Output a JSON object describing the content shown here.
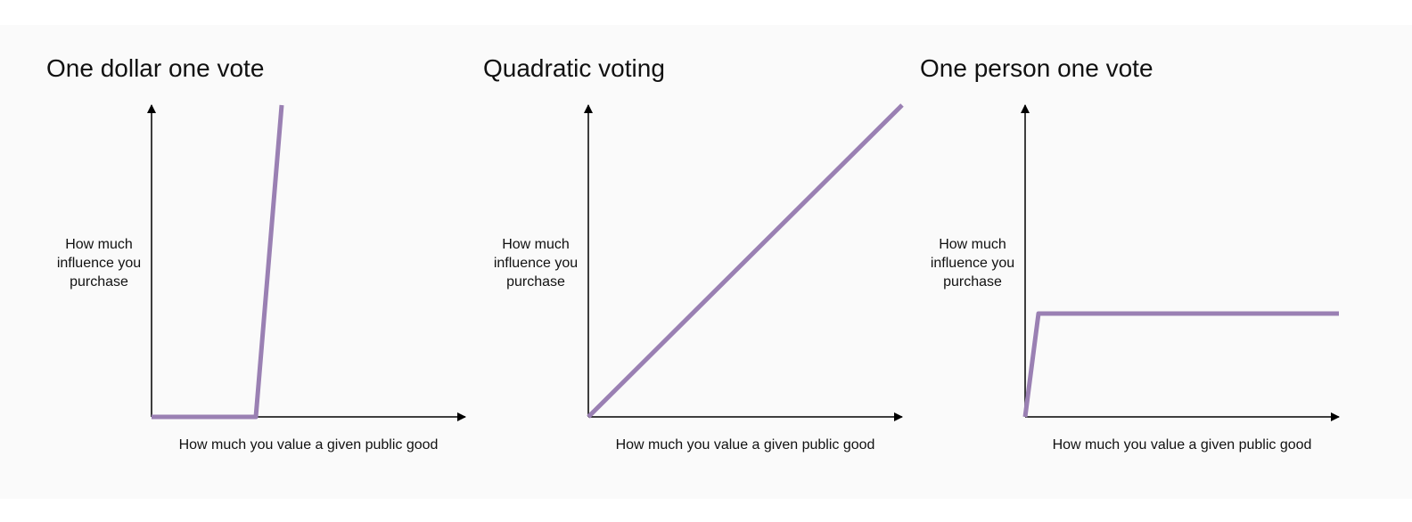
{
  "panels": [
    {
      "title": "One dollar one vote",
      "y_label": [
        "How much",
        "influence you",
        "purchase"
      ],
      "x_label": "How much you value a given public good"
    },
    {
      "title": "Quadratic voting",
      "y_label": [
        "How much",
        "influence you",
        "purchase"
      ],
      "x_label": "How much you value a given public good"
    },
    {
      "title": "One person one vote",
      "y_label": [
        "How much",
        "influence you",
        "purchase"
      ],
      "x_label": "How much you value a given public good"
    }
  ]
}
